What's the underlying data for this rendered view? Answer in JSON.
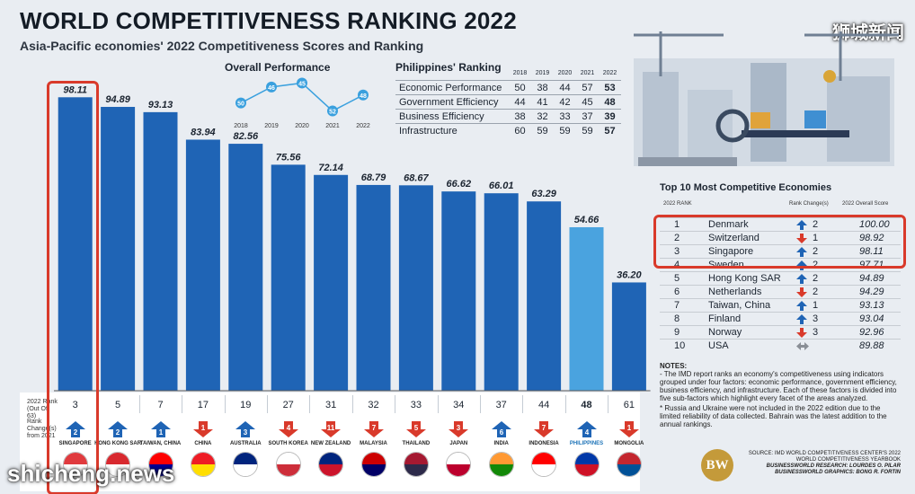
{
  "title": "WORLD COMPETITIVENESS RANKING 2022",
  "subtitle": "Asia-Pacific economies' 2022 Competitiveness Scores and Ranking",
  "watermark_top": "狮城新闻",
  "watermark_bottom": "shicheng.news",
  "chart_data": [
    {
      "type": "bar",
      "categories": [
        "SINGAPORE",
        "HONG KONG SAR",
        "TAIWAN, CHINA",
        "CHINA",
        "AUSTRALIA",
        "SOUTH KOREA",
        "NEW ZEALAND",
        "MALAYSIA",
        "THAILAND",
        "JAPAN",
        "INDIA",
        "INDONESIA",
        "PHILIPPINES",
        "MONGOLIA"
      ],
      "values": [
        98.11,
        94.89,
        93.13,
        83.94,
        82.56,
        75.56,
        72.14,
        68.79,
        68.67,
        66.62,
        66.01,
        63.29,
        54.66,
        36.2
      ],
      "value_labels": [
        "98.11",
        "94.89",
        "93.13",
        "83.94",
        "82.56",
        "75.56",
        "72.14",
        "68.79",
        "68.67",
        "66.62",
        "66.01",
        "63.29",
        "54.66",
        "36.20"
      ],
      "ylim": [
        0,
        100
      ],
      "color": "#1f64b5",
      "highlight_color": "#4aa3df",
      "ranks_2022": [
        "3",
        "5",
        "7",
        "17",
        "19",
        "27",
        "31",
        "32",
        "33",
        "34",
        "37",
        "44",
        "48",
        "61"
      ],
      "rank_change": [
        2,
        2,
        1,
        -1,
        3,
        -4,
        -11,
        -7,
        -5,
        -3,
        6,
        -7,
        4,
        -1
      ],
      "rank_change_labels": [
        "2",
        "2",
        "1",
        "1",
        "3",
        "4",
        "11",
        "7",
        "5",
        "3",
        "6",
        "7",
        "4",
        "1"
      ]
    },
    {
      "type": "line",
      "title": "Overall Performance",
      "x": [
        "2018",
        "2019",
        "2020",
        "2021",
        "2022"
      ],
      "values": [
        50,
        46,
        45,
        52,
        48
      ],
      "value_labels": [
        "50",
        "46",
        "45",
        "52",
        "48"
      ],
      "y_inverted": true
    }
  ],
  "rank_panel": {
    "rank_header": "2022 Rank (Out Of 63)",
    "change_header": "Rank Change(s) from 2021"
  },
  "philippines": {
    "title": "Philippines' Ranking",
    "years": [
      "2018",
      "2019",
      "2020",
      "2021",
      "2022"
    ],
    "rows": [
      {
        "label": "Economic Performance",
        "values": [
          "50",
          "38",
          "44",
          "57",
          "53"
        ]
      },
      {
        "label": "Government Efficiency",
        "values": [
          "44",
          "41",
          "42",
          "45",
          "48"
        ]
      },
      {
        "label": "Business Efficiency",
        "values": [
          "38",
          "32",
          "33",
          "37",
          "39"
        ]
      },
      {
        "label": "Infrastructure",
        "values": [
          "60",
          "59",
          "59",
          "59",
          "57"
        ]
      }
    ]
  },
  "top10": {
    "title": "Top 10 Most Competitive Economies",
    "headers": {
      "rank": "2022 RANK",
      "change": "Rank Change(s)",
      "score": "2022 Overall Score"
    },
    "rows": [
      {
        "rank": "1",
        "name": "Denmark",
        "dir": "up",
        "change": "2",
        "score": "100.00"
      },
      {
        "rank": "2",
        "name": "Switzerland",
        "dir": "down",
        "change": "1",
        "score": "98.92"
      },
      {
        "rank": "3",
        "name": "Singapore",
        "dir": "up",
        "change": "2",
        "score": "98.11"
      },
      {
        "rank": "4",
        "name": "Sweden",
        "dir": "up",
        "change": "2",
        "score": "97.71"
      },
      {
        "rank": "5",
        "name": "Hong Kong SAR",
        "dir": "up",
        "change": "2",
        "score": "94.89"
      },
      {
        "rank": "6",
        "name": "Netherlands",
        "dir": "down",
        "change": "2",
        "score": "94.29"
      },
      {
        "rank": "7",
        "name": "Taiwan, China",
        "dir": "up",
        "change": "1",
        "score": "93.13"
      },
      {
        "rank": "8",
        "name": "Finland",
        "dir": "up",
        "change": "3",
        "score": "93.04"
      },
      {
        "rank": "9",
        "name": "Norway",
        "dir": "down",
        "change": "3",
        "score": "92.96"
      },
      {
        "rank": "10",
        "name": "USA",
        "dir": "same",
        "change": "",
        "score": "89.88"
      }
    ]
  },
  "notes": {
    "title": "NOTES:",
    "line1": "- The IMD report ranks an economy's competitiveness using indicators grouped under four factors: economic performance, government efficiency, business efficiency, and infrastructure. Each of these factors is divided into five sub-factors which highlight every facet of the areas analyzed.",
    "line2": "* Russia and Ukraine were not included in the 2022 edition due to the limited reliability of data collected. Bahrain was the latest addition to the annual rankings."
  },
  "source": {
    "line1": "SOURCE: IMD WORLD COMPETITIVENESS CENTER'S 2022 WORLD COMPETITIVENESS YEARBOOK",
    "line2": "BUSINESSWORLD RESEARCH: LOURDES O. PILAR",
    "line3": "BUSINESSWORLD GRAPHICS: BONG R. FORTIN",
    "logo": "BW"
  },
  "colors": {
    "up": "#1f64b5",
    "down": "#d93a2b",
    "same": "#8a8f96",
    "highlight": "#d93a2b"
  }
}
